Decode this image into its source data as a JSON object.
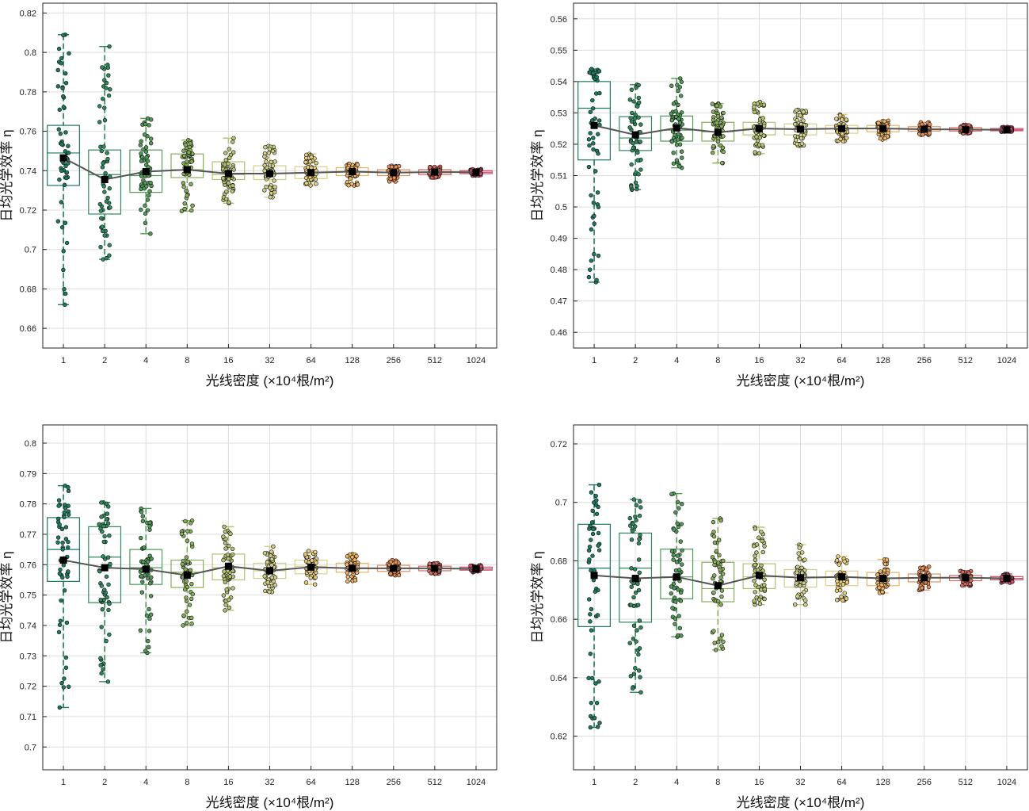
{
  "chart_data": [
    {
      "type": "box",
      "title": "",
      "xlabel": "光线密度 (×10⁴根/m²)",
      "ylabel": "日均光学效率 η",
      "categories": [
        "1",
        "2",
        "4",
        "8",
        "16",
        "32",
        "64",
        "128",
        "256",
        "512",
        "1024"
      ],
      "ylim": [
        0.65,
        0.825
      ],
      "yticks": [
        0.66,
        0.68,
        0.7,
        0.72,
        0.74,
        0.76,
        0.78,
        0.8,
        0.82
      ],
      "ytick_labels": [
        "0.66",
        "0.68",
        "0.7",
        "0.72",
        "0.74",
        "0.76",
        "0.78",
        "0.8",
        "0.82"
      ],
      "means": [
        0.7465,
        0.7355,
        0.7395,
        0.7405,
        0.7385,
        0.7385,
        0.739,
        0.7395,
        0.739,
        0.7393,
        0.7392
      ],
      "boxes": [
        {
          "whisker_low": 0.672,
          "q1": 0.7325,
          "median": 0.749,
          "q3": 0.763,
          "whisker_high": 0.809
        },
        {
          "whisker_low": 0.695,
          "q1": 0.718,
          "median": 0.738,
          "q3": 0.7505,
          "whisker_high": 0.803
        },
        {
          "whisker_low": 0.708,
          "q1": 0.729,
          "median": 0.7375,
          "q3": 0.7505,
          "whisker_high": 0.7665
        },
        {
          "whisker_low": 0.7195,
          "q1": 0.7365,
          "median": 0.7405,
          "q3": 0.7485,
          "whisker_high": 0.7555
        },
        {
          "whisker_low": 0.7235,
          "q1": 0.7355,
          "median": 0.738,
          "q3": 0.7445,
          "whisker_high": 0.7565
        },
        {
          "whisker_low": 0.7265,
          "q1": 0.7355,
          "median": 0.7385,
          "q3": 0.7425,
          "whisker_high": 0.7525
        },
        {
          "whisker_low": 0.7325,
          "q1": 0.736,
          "median": 0.739,
          "q3": 0.742,
          "whisker_high": 0.7485
        },
        {
          "whisker_low": 0.7325,
          "q1": 0.7375,
          "median": 0.7395,
          "q3": 0.7415,
          "whisker_high": 0.7435
        },
        {
          "whisker_low": 0.7345,
          "q1": 0.7375,
          "median": 0.739,
          "q3": 0.7405,
          "whisker_high": 0.7425
        },
        {
          "whisker_low": 0.7365,
          "q1": 0.738,
          "median": 0.739,
          "q3": 0.7405,
          "whisker_high": 0.742
        },
        {
          "whisker_low": 0.7375,
          "q1": 0.7385,
          "median": 0.7392,
          "q3": 0.74,
          "whisker_high": 0.7408
        }
      ]
    },
    {
      "type": "box",
      "title": "",
      "xlabel": "光线密度 (×10⁴根/m²)",
      "ylabel": "日均光学效率 η",
      "categories": [
        "1",
        "2",
        "4",
        "8",
        "16",
        "32",
        "64",
        "128",
        "256",
        "512",
        "1024"
      ],
      "ylim": [
        0.455,
        0.565
      ],
      "yticks": [
        0.46,
        0.47,
        0.48,
        0.49,
        0.5,
        0.51,
        0.52,
        0.53,
        0.54,
        0.55,
        0.56
      ],
      "ytick_labels": [
        "0.46",
        "0.47",
        "0.48",
        "0.49",
        "0.5",
        "0.51",
        "0.52",
        "0.53",
        "0.54",
        "0.55",
        "0.56"
      ],
      "means": [
        0.526,
        0.523,
        0.5252,
        0.5238,
        0.525,
        0.5248,
        0.525,
        0.525,
        0.5248,
        0.5247,
        0.5246
      ],
      "boxes": [
        {
          "whisker_low": 0.476,
          "q1": 0.515,
          "median": 0.5315,
          "q3": 0.54,
          "whisker_high": 0.544
        },
        {
          "whisker_low": 0.5055,
          "q1": 0.518,
          "median": 0.522,
          "q3": 0.5288,
          "whisker_high": 0.539
        },
        {
          "whisker_low": 0.5125,
          "q1": 0.521,
          "median": 0.5245,
          "q3": 0.529,
          "whisker_high": 0.541
        },
        {
          "whisker_low": 0.514,
          "q1": 0.521,
          "median": 0.524,
          "q3": 0.527,
          "whisker_high": 0.533
        },
        {
          "whisker_low": 0.517,
          "q1": 0.523,
          "median": 0.525,
          "q3": 0.527,
          "whisker_high": 0.5335
        },
        {
          "whisker_low": 0.5195,
          "q1": 0.523,
          "median": 0.525,
          "q3": 0.5265,
          "whisker_high": 0.531
        },
        {
          "whisker_low": 0.521,
          "q1": 0.5235,
          "median": 0.525,
          "q3": 0.526,
          "whisker_high": 0.5295
        },
        {
          "whisker_low": 0.5215,
          "q1": 0.524,
          "median": 0.525,
          "q3": 0.526,
          "whisker_high": 0.5275
        },
        {
          "whisker_low": 0.523,
          "q1": 0.5242,
          "median": 0.5248,
          "q3": 0.5256,
          "whisker_high": 0.527
        },
        {
          "whisker_low": 0.5235,
          "q1": 0.5242,
          "median": 0.5247,
          "q3": 0.5253,
          "whisker_high": 0.5262
        },
        {
          "whisker_low": 0.524,
          "q1": 0.5243,
          "median": 0.5246,
          "q3": 0.525,
          "whisker_high": 0.5255
        }
      ]
    },
    {
      "type": "box",
      "title": "",
      "xlabel": "光线密度 (×10⁴根/m²)",
      "ylabel": "日均光学效率 η",
      "categories": [
        "1",
        "2",
        "4",
        "8",
        "16",
        "32",
        "64",
        "128",
        "256",
        "512",
        "1024"
      ],
      "ylim": [
        0.6925,
        0.806
      ],
      "yticks": [
        0.7,
        0.71,
        0.72,
        0.73,
        0.74,
        0.75,
        0.76,
        0.77,
        0.78,
        0.79,
        0.8
      ],
      "ytick_labels": [
        "0.7",
        "0.71",
        "0.72",
        "0.73",
        "0.74",
        "0.75",
        "0.76",
        "0.77",
        "0.78",
        "0.79",
        "0.8"
      ],
      "means": [
        0.7615,
        0.759,
        0.7585,
        0.7565,
        0.7595,
        0.758,
        0.7592,
        0.7588,
        0.7588,
        0.7588,
        0.7586
      ],
      "boxes": [
        {
          "whisker_low": 0.713,
          "q1": 0.7545,
          "median": 0.765,
          "q3": 0.7755,
          "whisker_high": 0.786
        },
        {
          "whisker_low": 0.7215,
          "q1": 0.7475,
          "median": 0.7625,
          "q3": 0.7725,
          "whisker_high": 0.7805
        },
        {
          "whisker_low": 0.731,
          "q1": 0.7535,
          "median": 0.759,
          "q3": 0.765,
          "whisker_high": 0.7785
        },
        {
          "whisker_low": 0.74,
          "q1": 0.7525,
          "median": 0.7575,
          "q3": 0.7615,
          "whisker_high": 0.7745
        },
        {
          "whisker_low": 0.745,
          "q1": 0.755,
          "median": 0.759,
          "q3": 0.7635,
          "whisker_high": 0.7725
        },
        {
          "whisker_low": 0.751,
          "q1": 0.7555,
          "median": 0.758,
          "q3": 0.7605,
          "whisker_high": 0.766
        },
        {
          "whisker_low": 0.7535,
          "q1": 0.757,
          "median": 0.7595,
          "q3": 0.7615,
          "whisker_high": 0.7645
        },
        {
          "whisker_low": 0.7545,
          "q1": 0.7575,
          "median": 0.759,
          "q3": 0.7605,
          "whisker_high": 0.7635
        },
        {
          "whisker_low": 0.7565,
          "q1": 0.7578,
          "median": 0.7588,
          "q3": 0.7598,
          "whisker_high": 0.7615
        },
        {
          "whisker_low": 0.757,
          "q1": 0.758,
          "median": 0.7588,
          "q3": 0.7595,
          "whisker_high": 0.7605
        },
        {
          "whisker_low": 0.7575,
          "q1": 0.7582,
          "median": 0.7586,
          "q3": 0.7592,
          "whisker_high": 0.7598
        }
      ]
    },
    {
      "type": "box",
      "title": "",
      "xlabel": "光线密度 (×10⁴根/m²)",
      "ylabel": "日均光学效率 η",
      "categories": [
        "1",
        "2",
        "4",
        "8",
        "16",
        "32",
        "64",
        "128",
        "256",
        "512",
        "1024"
      ],
      "ylim": [
        0.6085,
        0.7265
      ],
      "yticks": [
        0.62,
        0.64,
        0.66,
        0.68,
        0.7,
        0.72
      ],
      "ytick_labels": [
        "0.62",
        "0.64",
        "0.66",
        "0.68",
        "0.7",
        "0.72"
      ],
      "means": [
        0.675,
        0.674,
        0.6745,
        0.6715,
        0.675,
        0.6742,
        0.6745,
        0.674,
        0.6742,
        0.6742,
        0.674
      ],
      "boxes": [
        {
          "whisker_low": 0.623,
          "q1": 0.6575,
          "median": 0.6775,
          "q3": 0.6925,
          "whisker_high": 0.706
        },
        {
          "whisker_low": 0.635,
          "q1": 0.659,
          "median": 0.6775,
          "q3": 0.6895,
          "whisker_high": 0.701
        },
        {
          "whisker_low": 0.654,
          "q1": 0.667,
          "median": 0.6745,
          "q3": 0.684,
          "whisker_high": 0.703
        },
        {
          "whisker_low": 0.6495,
          "q1": 0.666,
          "median": 0.6705,
          "q3": 0.6795,
          "whisker_high": 0.6945
        },
        {
          "whisker_low": 0.665,
          "q1": 0.6705,
          "median": 0.6745,
          "q3": 0.679,
          "whisker_high": 0.6915
        },
        {
          "whisker_low": 0.665,
          "q1": 0.671,
          "median": 0.6745,
          "q3": 0.677,
          "whisker_high": 0.6855
        },
        {
          "whisker_low": 0.6665,
          "q1": 0.6715,
          "median": 0.6745,
          "q3": 0.6765,
          "whisker_high": 0.6815
        },
        {
          "whisker_low": 0.669,
          "q1": 0.6715,
          "median": 0.674,
          "q3": 0.676,
          "whisker_high": 0.6805
        },
        {
          "whisker_low": 0.67,
          "q1": 0.6728,
          "median": 0.6742,
          "q3": 0.6755,
          "whisker_high": 0.678
        },
        {
          "whisker_low": 0.6715,
          "q1": 0.6732,
          "median": 0.6742,
          "q3": 0.675,
          "whisker_high": 0.6765
        },
        {
          "whisker_low": 0.6725,
          "q1": 0.6735,
          "median": 0.674,
          "q3": 0.6746,
          "whisker_high": 0.6755
        }
      ]
    }
  ],
  "colors": {
    "box_colors": [
      "#1b7a62",
      "#2e8a5c",
      "#4f9a58",
      "#86ad5a",
      "#b6c071",
      "#cfcf8a",
      "#e4cc7e",
      "#ecb265",
      "#e49059",
      "#d9695d",
      "#cc4a66"
    ],
    "mean_line": "#555555",
    "mean_marker": "#000000",
    "grid": "#dddddd",
    "axis": "#222222"
  }
}
